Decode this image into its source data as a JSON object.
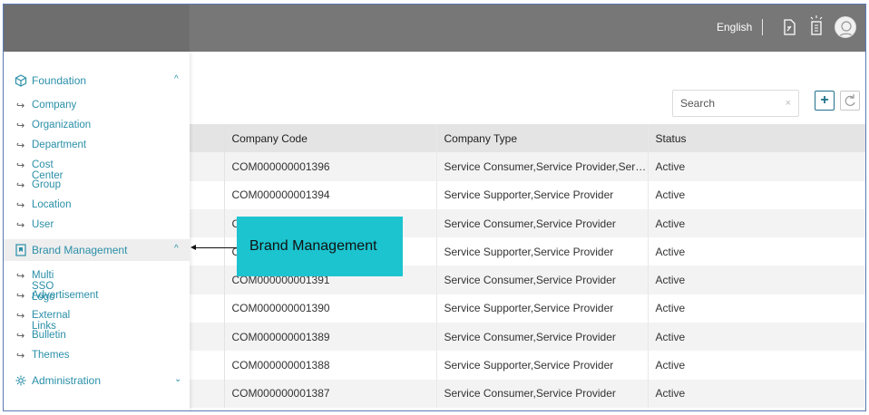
{
  "header": {
    "language": "English",
    "icons": [
      "document-icon",
      "lightbulb-icon",
      "user-avatar-icon"
    ]
  },
  "toolbar": {
    "search_placeholder": "Search",
    "clear_symbol": "×",
    "add_symbol": "+"
  },
  "sidebar": {
    "sections": [
      {
        "label": "Foundation",
        "icon": "cube-icon",
        "expanded": true,
        "items": [
          "Company",
          "Organization",
          "Department",
          "Cost Center",
          "Group",
          "Location",
          "User"
        ]
      },
      {
        "label": "Brand Management",
        "icon": "bookmark-icon",
        "expanded": true,
        "active": true,
        "items": [
          "Multi SSO Logo",
          "Advertisement",
          "External Links",
          "Bulletin",
          "Themes"
        ]
      },
      {
        "label": "Administration",
        "icon": "gear-icon",
        "expanded": false,
        "items": []
      }
    ],
    "item_arrow": "↪",
    "chevron_up": "^",
    "chevron_down": "⌄"
  },
  "table": {
    "columns": [
      "",
      "Company Code",
      "Company Type",
      "Status"
    ],
    "rows": [
      {
        "code": "COM000000001396",
        "type": "Service Consumer,Service Provider,Service ...",
        "status": "Active"
      },
      {
        "code": "COM000000001394",
        "type": "Service Supporter,Service Provider",
        "status": "Active"
      },
      {
        "code": "C",
        "type": "Service Consumer,Service Provider",
        "status": "Active"
      },
      {
        "code": "C",
        "type": "Service Supporter,Service Provider",
        "status": "Active"
      },
      {
        "code": "COM000000001391",
        "type": "Service Consumer,Service Provider",
        "status": "Active"
      },
      {
        "code": "COM000000001390",
        "type": "Service Supporter,Service Provider",
        "status": "Active"
      },
      {
        "code": "COM000000001389",
        "type": "Service Consumer,Service Provider",
        "status": "Active"
      },
      {
        "code": "COM000000001388",
        "type": "Service Supporter,Service Provider",
        "status": "Active"
      },
      {
        "code": "COM000000001387",
        "type": "Service Consumer,Service Provider",
        "status": "Active"
      }
    ]
  },
  "annotation": {
    "callout_text": "Brand Management",
    "callout_color": "#1bc4cf"
  },
  "colors": {
    "accent": "#2a8fa8",
    "topbar": "#777777"
  }
}
